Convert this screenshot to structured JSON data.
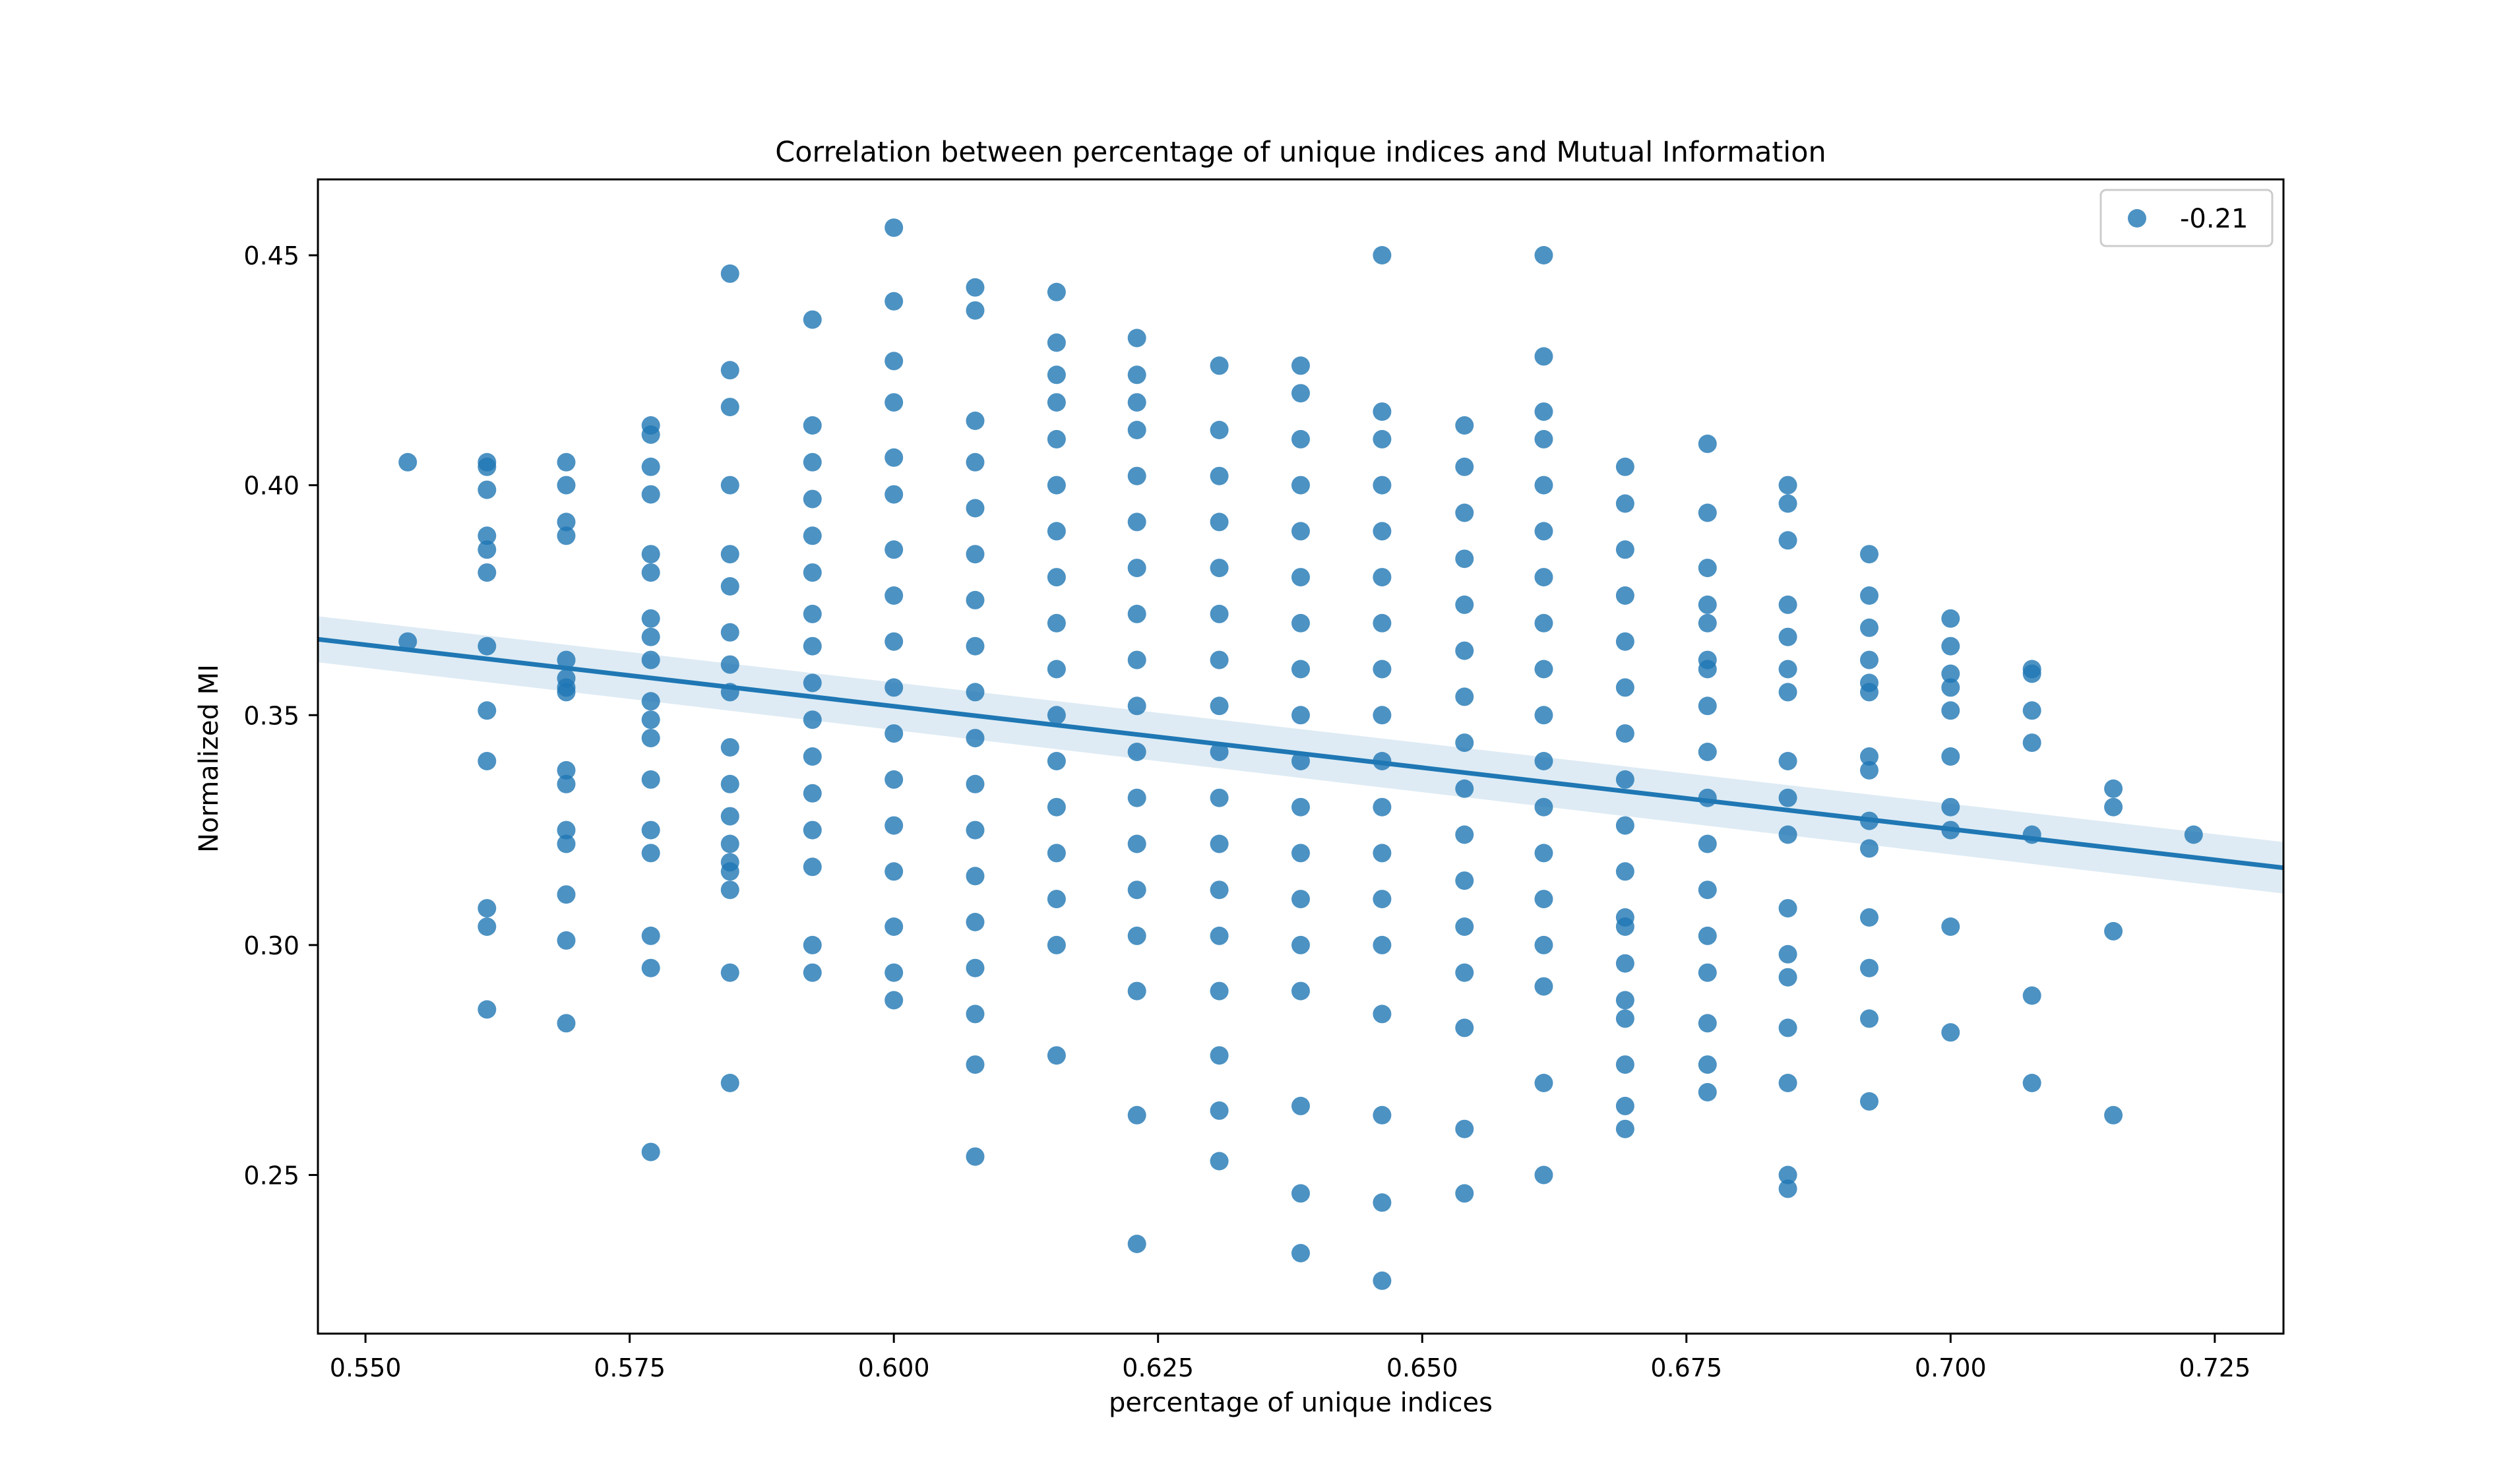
{
  "chart_data": {
    "type": "scatter",
    "title": "Correlation between percentage of unique indices and Mutual Information",
    "xlabel": "percentage of unique indices",
    "ylabel": "Normalized MI",
    "xlim": [
      0.5455,
      0.7315
    ],
    "ylim": [
      0.2155,
      0.4665
    ],
    "x_ticks": [
      0.55,
      0.575,
      0.6,
      0.625,
      0.65,
      0.675,
      0.7,
      0.725
    ],
    "x_tick_labels": [
      "0.550",
      "0.575",
      "0.600",
      "0.625",
      "0.650",
      "0.675",
      "0.700",
      "0.725"
    ],
    "y_ticks": [
      0.25,
      0.3,
      0.35,
      0.4,
      0.45
    ],
    "y_tick_labels": [
      "0.25",
      "0.30",
      "0.35",
      "0.40",
      "0.45"
    ],
    "grid": false,
    "legend": {
      "placement": "top-right",
      "entries": [
        {
          "label": "-0.21",
          "marker": "circle"
        }
      ]
    },
    "colors": {
      "points": "#1f77b4",
      "line": "#1f77b4",
      "band": "#1f77b4"
    },
    "regression": {
      "x": [
        0.5455,
        0.7315
      ],
      "y": [
        0.3665,
        0.3168
      ],
      "ci_upper": [
        0.3715,
        0.3224
      ],
      "ci_lower": [
        0.3615,
        0.3112
      ]
    },
    "series": [
      {
        "x": [
          0.554,
          0.554,
          0.5615,
          0.5615,
          0.5615,
          0.5615,
          0.5615,
          0.5615,
          0.5615,
          0.5615,
          0.5615,
          0.5615,
          0.5615,
          0.5615,
          0.569,
          0.569,
          0.569,
          0.569,
          0.569,
          0.569,
          0.569,
          0.569,
          0.569,
          0.569,
          0.569,
          0.569,
          0.569,
          0.569,
          0.569,
          0.577,
          0.577,
          0.577,
          0.577,
          0.577,
          0.577,
          0.577,
          0.577,
          0.577,
          0.577,
          0.577,
          0.577,
          0.577,
          0.577,
          0.577,
          0.577,
          0.577,
          0.577,
          0.5845,
          0.5845,
          0.5845,
          0.5845,
          0.5845,
          0.5845,
          0.5845,
          0.5845,
          0.5845,
          0.5845,
          0.5845,
          0.5845,
          0.5845,
          0.5845,
          0.5845,
          0.5845,
          0.5845,
          0.5845,
          0.5923,
          0.5923,
          0.5923,
          0.5923,
          0.5923,
          0.5923,
          0.5923,
          0.5923,
          0.5923,
          0.5923,
          0.5923,
          0.5923,
          0.5923,
          0.5923,
          0.5923,
          0.5923,
          0.6,
          0.6,
          0.6,
          0.6,
          0.6,
          0.6,
          0.6,
          0.6,
          0.6,
          0.6,
          0.6,
          0.6,
          0.6,
          0.6,
          0.6,
          0.6,
          0.6,
          0.6077,
          0.6077,
          0.6077,
          0.6077,
          0.6077,
          0.6077,
          0.6077,
          0.6077,
          0.6077,
          0.6077,
          0.6077,
          0.6077,
          0.6077,
          0.6077,
          0.6077,
          0.6077,
          0.6077,
          0.6077,
          0.6154,
          0.6154,
          0.6154,
          0.6154,
          0.6154,
          0.6154,
          0.6154,
          0.6154,
          0.6154,
          0.6154,
          0.6154,
          0.6154,
          0.6154,
          0.6154,
          0.6154,
          0.6154,
          0.6154,
          0.623,
          0.623,
          0.623,
          0.623,
          0.623,
          0.623,
          0.623,
          0.623,
          0.623,
          0.623,
          0.623,
          0.623,
          0.623,
          0.623,
          0.623,
          0.623,
          0.623,
          0.623,
          0.6308,
          0.6308,
          0.6308,
          0.6308,
          0.6308,
          0.6308,
          0.6308,
          0.6308,
          0.6308,
          0.6308,
          0.6308,
          0.6308,
          0.6308,
          0.6308,
          0.6308,
          0.6308,
          0.6308,
          0.6385,
          0.6385,
          0.6385,
          0.6385,
          0.6385,
          0.6385,
          0.6385,
          0.6385,
          0.6385,
          0.6385,
          0.6385,
          0.6385,
          0.6385,
          0.6385,
          0.6385,
          0.6385,
          0.6385,
          0.6385,
          0.6462,
          0.6462,
          0.6462,
          0.6462,
          0.6462,
          0.6462,
          0.6462,
          0.6462,
          0.6462,
          0.6462,
          0.6462,
          0.6462,
          0.6462,
          0.6462,
          0.6462,
          0.6462,
          0.6462,
          0.6462,
          0.654,
          0.654,
          0.654,
          0.654,
          0.654,
          0.654,
          0.654,
          0.654,
          0.654,
          0.654,
          0.654,
          0.654,
          0.654,
          0.654,
          0.654,
          0.654,
          0.6615,
          0.6615,
          0.6615,
          0.6615,
          0.6615,
          0.6615,
          0.6615,
          0.6615,
          0.6615,
          0.6615,
          0.6615,
          0.6615,
          0.6615,
          0.6615,
          0.6615,
          0.6615,
          0.6615,
          0.6615,
          0.6692,
          0.6692,
          0.6692,
          0.6692,
          0.6692,
          0.6692,
          0.6692,
          0.6692,
          0.6692,
          0.6692,
          0.6692,
          0.6692,
          0.6692,
          0.6692,
          0.6692,
          0.6692,
          0.6692,
          0.6692,
          0.677,
          0.677,
          0.677,
          0.677,
          0.677,
          0.677,
          0.677,
          0.677,
          0.677,
          0.677,
          0.677,
          0.677,
          0.677,
          0.677,
          0.677,
          0.677,
          0.677,
          0.6846,
          0.6846,
          0.6846,
          0.6846,
          0.6846,
          0.6846,
          0.6846,
          0.6846,
          0.6846,
          0.6846,
          0.6846,
          0.6846,
          0.6846,
          0.6846,
          0.6846,
          0.6846,
          0.6846,
          0.6923,
          0.6923,
          0.6923,
          0.6923,
          0.6923,
          0.6923,
          0.6923,
          0.6923,
          0.6923,
          0.6923,
          0.6923,
          0.6923,
          0.6923,
          0.6923,
          0.7,
          0.7,
          0.7,
          0.7,
          0.7,
          0.7,
          0.7,
          0.7,
          0.7,
          0.7,
          0.7077,
          0.7077,
          0.7077,
          0.7077,
          0.7077,
          0.7077,
          0.7077,
          0.7154,
          0.7154,
          0.7154,
          0.7154,
          0.723
        ],
        "y": [
          0.405,
          0.366,
          0.405,
          0.404,
          0.399,
          0.389,
          0.386,
          0.381,
          0.365,
          0.351,
          0.34,
          0.308,
          0.304,
          0.286,
          0.405,
          0.4,
          0.392,
          0.389,
          0.362,
          0.358,
          0.355,
          0.338,
          0.335,
          0.325,
          0.322,
          0.311,
          0.301,
          0.283,
          0.356,
          0.413,
          0.411,
          0.404,
          0.398,
          0.385,
          0.381,
          0.371,
          0.367,
          0.362,
          0.353,
          0.349,
          0.345,
          0.336,
          0.325,
          0.32,
          0.302,
          0.295,
          0.255,
          0.446,
          0.425,
          0.417,
          0.4,
          0.385,
          0.378,
          0.368,
          0.361,
          0.355,
          0.343,
          0.335,
          0.328,
          0.322,
          0.316,
          0.312,
          0.318,
          0.294,
          0.27,
          0.436,
          0.413,
          0.405,
          0.397,
          0.389,
          0.381,
          0.372,
          0.365,
          0.357,
          0.349,
          0.341,
          0.333,
          0.325,
          0.317,
          0.3,
          0.294,
          0.456,
          0.44,
          0.427,
          0.418,
          0.406,
          0.398,
          0.386,
          0.376,
          0.366,
          0.356,
          0.346,
          0.336,
          0.326,
          0.316,
          0.304,
          0.294,
          0.288,
          0.443,
          0.438,
          0.414,
          0.405,
          0.395,
          0.385,
          0.375,
          0.365,
          0.355,
          0.345,
          0.335,
          0.325,
          0.315,
          0.305,
          0.295,
          0.285,
          0.274,
          0.254,
          0.442,
          0.431,
          0.424,
          0.418,
          0.41,
          0.4,
          0.39,
          0.38,
          0.37,
          0.36,
          0.35,
          0.34,
          0.33,
          0.32,
          0.31,
          0.3,
          0.276,
          0.432,
          0.424,
          0.418,
          0.412,
          0.402,
          0.392,
          0.382,
          0.372,
          0.362,
          0.352,
          0.342,
          0.332,
          0.322,
          0.312,
          0.302,
          0.29,
          0.263,
          0.235,
          0.426,
          0.412,
          0.402,
          0.392,
          0.382,
          0.372,
          0.362,
          0.352,
          0.342,
          0.332,
          0.322,
          0.312,
          0.302,
          0.29,
          0.276,
          0.264,
          0.253,
          0.426,
          0.42,
          0.41,
          0.4,
          0.39,
          0.38,
          0.37,
          0.36,
          0.35,
          0.34,
          0.33,
          0.32,
          0.31,
          0.3,
          0.29,
          0.265,
          0.246,
          0.233,
          0.45,
          0.416,
          0.41,
          0.4,
          0.39,
          0.38,
          0.37,
          0.36,
          0.35,
          0.34,
          0.33,
          0.32,
          0.31,
          0.3,
          0.285,
          0.263,
          0.244,
          0.227,
          0.413,
          0.404,
          0.394,
          0.384,
          0.374,
          0.364,
          0.354,
          0.344,
          0.334,
          0.324,
          0.314,
          0.304,
          0.294,
          0.282,
          0.26,
          0.246,
          0.45,
          0.428,
          0.416,
          0.41,
          0.4,
          0.39,
          0.38,
          0.37,
          0.36,
          0.35,
          0.34,
          0.33,
          0.32,
          0.31,
          0.3,
          0.291,
          0.27,
          0.25,
          0.404,
          0.396,
          0.386,
          0.376,
          0.366,
          0.356,
          0.346,
          0.336,
          0.326,
          0.316,
          0.306,
          0.296,
          0.288,
          0.284,
          0.274,
          0.265,
          0.26,
          0.304,
          0.409,
          0.394,
          0.382,
          0.374,
          0.362,
          0.352,
          0.342,
          0.332,
          0.322,
          0.312,
          0.302,
          0.294,
          0.283,
          0.274,
          0.268,
          0.37,
          0.36,
          0.4,
          0.396,
          0.388,
          0.374,
          0.367,
          0.36,
          0.355,
          0.34,
          0.332,
          0.324,
          0.308,
          0.298,
          0.293,
          0.282,
          0.27,
          0.25,
          0.247,
          0.385,
          0.376,
          0.369,
          0.362,
          0.357,
          0.355,
          0.341,
          0.338,
          0.327,
          0.321,
          0.306,
          0.295,
          0.284,
          0.266,
          0.371,
          0.365,
          0.359,
          0.356,
          0.351,
          0.341,
          0.33,
          0.325,
          0.304,
          0.281,
          0.36,
          0.359,
          0.351,
          0.344,
          0.324,
          0.289,
          0.27,
          0.334,
          0.33,
          0.303,
          0.263,
          0.324
        ]
      }
    ]
  }
}
